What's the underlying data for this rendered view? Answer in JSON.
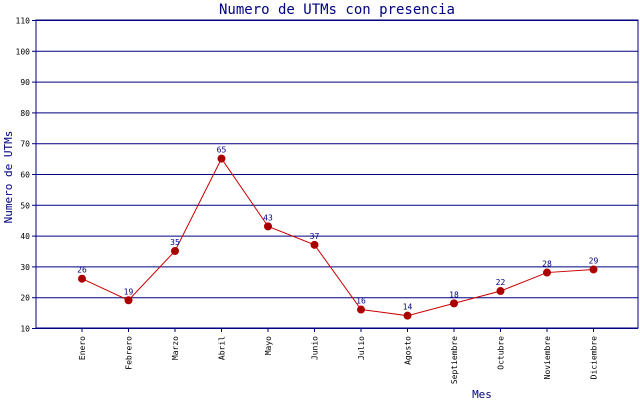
{
  "chart_data": {
    "type": "line",
    "title": "Numero de UTMs con presencia",
    "xlabel": "Mes",
    "ylabel": "Numero de UTMs",
    "categories": [
      "Enero",
      "Febrero",
      "Marzo",
      "Abril",
      "Mayo",
      "Junio",
      "Julio",
      "Agosto",
      "Septiembre",
      "Octubre",
      "Noviembre",
      "Diciembre"
    ],
    "series": [
      {
        "values": [
          26,
          19,
          35,
          65,
          43,
          37,
          16,
          14,
          18,
          22,
          28,
          29
        ]
      }
    ],
    "ylim": [
      10,
      110
    ],
    "yticks": [
      10,
      20,
      30,
      40,
      50,
      60,
      70,
      80,
      90,
      100,
      110
    ],
    "grid": true,
    "colors": {
      "line": "#cc0000",
      "marker": "#aa0000",
      "grid": "#000080",
      "text": "#000080"
    }
  }
}
